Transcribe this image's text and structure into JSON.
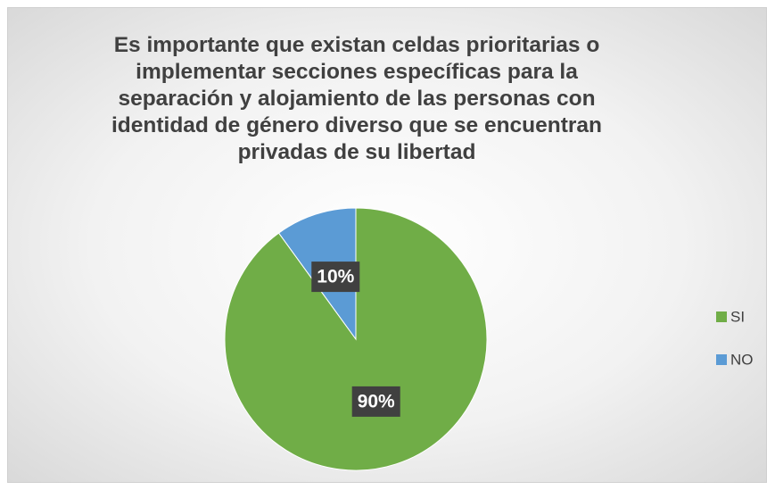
{
  "chart_data": {
    "type": "pie",
    "title": "Es importante que existan celdas prioritarias o implementar secciones específicas para la separación y alojamiento de las personas con identidad de género diverso que se encuentran privadas de su libertad",
    "categories": [
      "SI",
      "NO"
    ],
    "values": [
      90,
      10
    ],
    "value_labels": [
      "90%",
      "10%"
    ],
    "colors": [
      "#70ad47",
      "#5b9bd5"
    ],
    "legend": "right"
  }
}
